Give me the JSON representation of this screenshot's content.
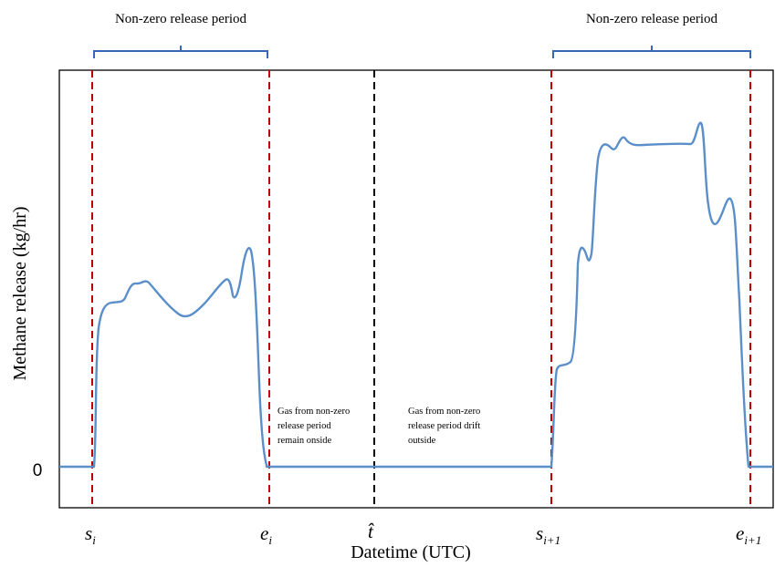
{
  "chart_data": {
    "type": "line",
    "xlabel": "Datetime (UTC)",
    "ylabel": "Methane release (kg/hr)",
    "y_tick_label": "0",
    "period_label_left": "Non-zero release period",
    "period_label_right": "Non-zero release period",
    "markers": [
      {
        "id": "s_i",
        "symbol": "s",
        "sub": "i",
        "style": "dashed",
        "color": "#c00000"
      },
      {
        "id": "e_i",
        "symbol": "e",
        "sub": "i",
        "style": "dashed",
        "color": "#c00000"
      },
      {
        "id": "t_hat",
        "symbol": "t̂",
        "sub": "",
        "style": "dashed",
        "color": "#000000"
      },
      {
        "id": "s_i1",
        "symbol": "s",
        "sub": "i+1",
        "style": "dashed",
        "color": "#c00000"
      },
      {
        "id": "e_i1",
        "symbol": "e",
        "sub": "i+1",
        "style": "dashed",
        "color": "#c00000"
      }
    ],
    "annotations": {
      "remain": [
        "Gas from non-zero",
        "release period",
        "remain onside"
      ],
      "drift": [
        "Gas from non-zero",
        "release period drift",
        "outside"
      ]
    },
    "series": [
      {
        "color": "#5b8fc9"
      }
    ],
    "bracket_color": "#3a66b8"
  }
}
